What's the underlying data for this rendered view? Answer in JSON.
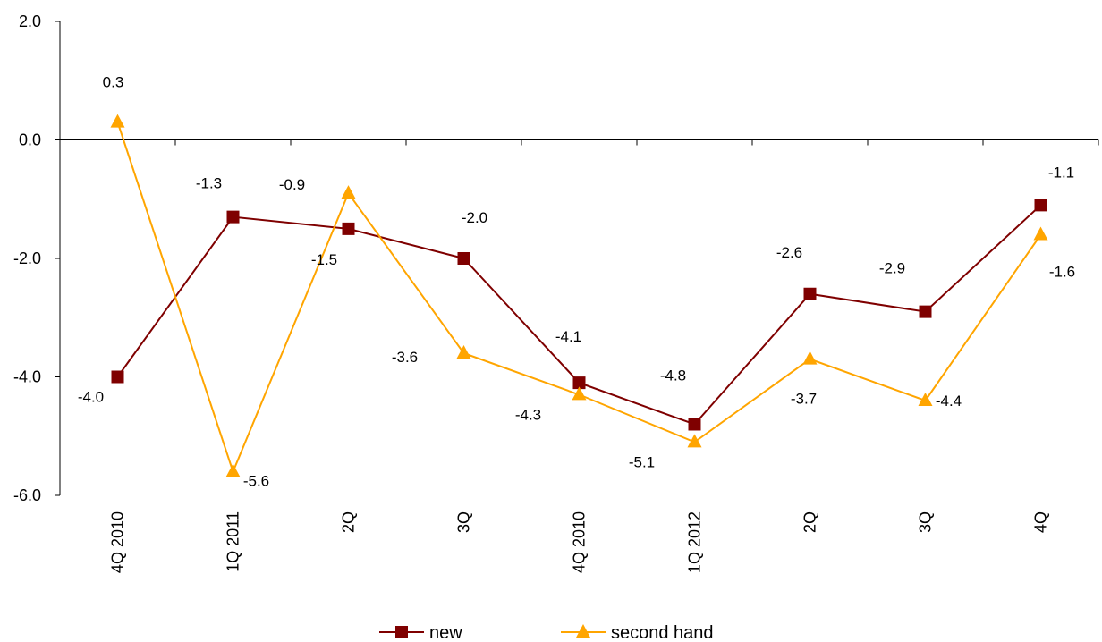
{
  "chart_data": {
    "type": "line",
    "categories": [
      "4Q 2010",
      "1Q 2011",
      "2Q",
      "3Q",
      "4Q 2010",
      "1Q 2012",
      "2Q",
      "3Q",
      "4Q"
    ],
    "series": [
      {
        "name": "new",
        "values": [
          -4.0,
          -1.3,
          -1.5,
          -2.0,
          -4.1,
          -4.8,
          -2.6,
          -2.9,
          -1.1
        ],
        "color": "#7f0000",
        "marker": "square"
      },
      {
        "name": "second hand",
        "values": [
          0.3,
          -5.6,
          -0.9,
          -3.6,
          -4.3,
          -5.1,
          -3.7,
          -4.4,
          -1.6
        ],
        "color": "#ffa500",
        "marker": "triangle"
      }
    ],
    "ylim": [
      -6.0,
      2.0
    ],
    "yticks": [
      -6.0,
      -4.0,
      -2.0,
      0.0,
      2.0
    ],
    "ytick_labels": [
      "-6.0",
      "-4.0",
      "-2.0",
      "0.0",
      "2.0"
    ],
    "data_label_format": "one decimal",
    "grid": false,
    "legend_position": "bottom-center",
    "title": "",
    "xlabel": "",
    "ylabel": ""
  }
}
